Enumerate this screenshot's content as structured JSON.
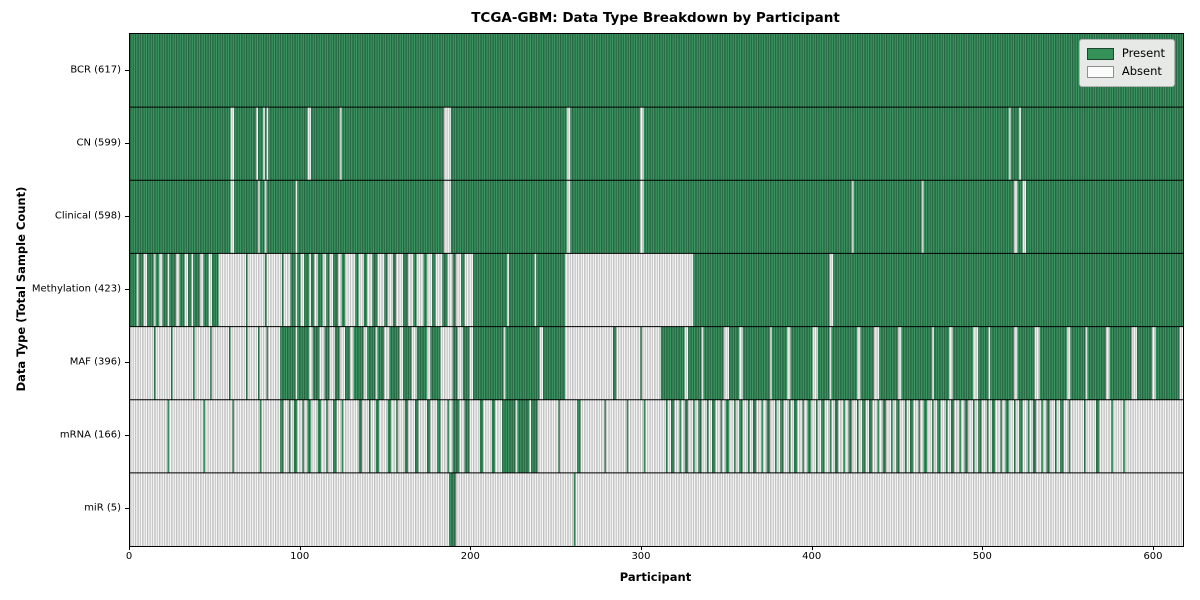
{
  "chart_data": {
    "type": "heatmap",
    "title": "TCGA-GBM: Data Type Breakdown by Participant",
    "xlabel": "Participant",
    "ylabel": "Data Type (Total Sample Count)",
    "x_ticks": [
      0,
      100,
      200,
      300,
      400,
      500,
      600
    ],
    "x_max": 617,
    "grid": false,
    "legend_position": "upper right",
    "legend": [
      {
        "label": "Present",
        "color": "#349158"
      },
      {
        "label": "Absent",
        "color": "#fbfbfb"
      }
    ],
    "colors": {
      "present": "#349158",
      "present_edge": "#1b4730",
      "present_accent": "#4da67a",
      "absent": "#fbfbfb",
      "absent_edge": "#9a9a9a"
    },
    "cell_values": {
      "present": 1,
      "absent": 0
    },
    "rows": [
      {
        "label": "BCR (617)",
        "present_count": 617,
        "runs": [
          [
            1,
            617
          ]
        ]
      },
      {
        "label": "CN (599)",
        "present_count": 599,
        "runs": [
          [
            1,
            59
          ],
          [
            0,
            2
          ],
          [
            1,
            13
          ],
          [
            0,
            1
          ],
          [
            1,
            3
          ],
          [
            0,
            1
          ],
          [
            1,
            1
          ],
          [
            0,
            1
          ],
          [
            1,
            23
          ],
          [
            0,
            2
          ],
          [
            1,
            17
          ],
          [
            0,
            1
          ],
          [
            1,
            60
          ],
          [
            0,
            4
          ],
          [
            1,
            68
          ],
          [
            0,
            2
          ],
          [
            1,
            41
          ],
          [
            0,
            2
          ],
          [
            1,
            214
          ],
          [
            0,
            1
          ],
          [
            1,
            5
          ],
          [
            0,
            1
          ],
          [
            1,
            95
          ]
        ]
      },
      {
        "label": "Clinical (598)",
        "present_count": 598,
        "runs": [
          [
            1,
            59
          ],
          [
            0,
            2
          ],
          [
            1,
            14
          ],
          [
            0,
            1
          ],
          [
            1,
            3
          ],
          [
            0,
            1
          ],
          [
            1,
            17
          ],
          [
            0,
            1
          ],
          [
            1,
            86
          ],
          [
            0,
            4
          ],
          [
            1,
            68
          ],
          [
            0,
            2
          ],
          [
            1,
            41
          ],
          [
            0,
            2
          ],
          [
            1,
            122
          ],
          [
            0,
            1
          ],
          [
            1,
            40
          ],
          [
            0,
            1
          ],
          [
            1,
            53
          ],
          [
            0,
            2
          ],
          [
            1,
            3
          ],
          [
            0,
            2
          ],
          [
            1,
            92
          ]
        ]
      },
      {
        "label": "Methylation (423)",
        "present_count": 423,
        "runs": [
          [
            1,
            4
          ],
          [
            0,
            1
          ],
          [
            1,
            3
          ],
          [
            0,
            2
          ],
          [
            1,
            4
          ],
          [
            0,
            1
          ],
          [
            1,
            2
          ],
          [
            0,
            2
          ],
          [
            1,
            3
          ],
          [
            0,
            1
          ],
          [
            1,
            4
          ],
          [
            0,
            2
          ],
          [
            1,
            3
          ],
          [
            0,
            2
          ],
          [
            1,
            2
          ],
          [
            0,
            1
          ],
          [
            1,
            4
          ],
          [
            0,
            2
          ],
          [
            1,
            3
          ],
          [
            0,
            2
          ],
          [
            1,
            4
          ],
          [
            0,
            4
          ],
          [
            0,
            12
          ],
          [
            1,
            1
          ],
          [
            0,
            10
          ],
          [
            1,
            1
          ],
          [
            0,
            9
          ],
          [
            1,
            1
          ],
          [
            0,
            4
          ],
          [
            1,
            3
          ],
          [
            0,
            1
          ],
          [
            1,
            2
          ],
          [
            0,
            2
          ],
          [
            1,
            3
          ],
          [
            0,
            1
          ],
          [
            1,
            2
          ],
          [
            0,
            2
          ],
          [
            1,
            3
          ],
          [
            0,
            2
          ],
          [
            1,
            2
          ],
          [
            0,
            2
          ],
          [
            1,
            3
          ],
          [
            0,
            2
          ],
          [
            1,
            2
          ],
          [
            0,
            4
          ],
          [
            0,
            2
          ],
          [
            1,
            2
          ],
          [
            0,
            3
          ],
          [
            1,
            2
          ],
          [
            0,
            3
          ],
          [
            1,
            3
          ],
          [
            0,
            4
          ],
          [
            1,
            2
          ],
          [
            0,
            3
          ],
          [
            1,
            2
          ],
          [
            0,
            4
          ],
          [
            1,
            3
          ],
          [
            0,
            3
          ],
          [
            1,
            2
          ],
          [
            0,
            4
          ],
          [
            1,
            2
          ],
          [
            0,
            3
          ],
          [
            1,
            2
          ],
          [
            0,
            4
          ],
          [
            1,
            3
          ],
          [
            0,
            3
          ],
          [
            1,
            2
          ],
          [
            0,
            3
          ],
          [
            1,
            2
          ],
          [
            0,
            5
          ],
          [
            1,
            20
          ],
          [
            0,
            1
          ],
          [
            1,
            15
          ],
          [
            0,
            1
          ],
          [
            1,
            17
          ],
          [
            0,
            75
          ],
          [
            1,
            80
          ],
          [
            0,
            2
          ],
          [
            1,
            205
          ]
        ]
      },
      {
        "label": "MAF (396)",
        "present_count": 396,
        "runs": [
          [
            0,
            14
          ],
          [
            1,
            1
          ],
          [
            0,
            9
          ],
          [
            1,
            1
          ],
          [
            0,
            12
          ],
          [
            1,
            1
          ],
          [
            0,
            9
          ],
          [
            1,
            1
          ],
          [
            0,
            10
          ],
          [
            1,
            1
          ],
          [
            0,
            9
          ],
          [
            1,
            1
          ],
          [
            0,
            6
          ],
          [
            1,
            1
          ],
          [
            0,
            4
          ],
          [
            1,
            1
          ],
          [
            0,
            7
          ],
          [
            1,
            9
          ],
          [
            0,
            1
          ],
          [
            1,
            7
          ],
          [
            0,
            2
          ],
          [
            1,
            4
          ],
          [
            0,
            3
          ],
          [
            1,
            3
          ],
          [
            0,
            3
          ],
          [
            1,
            3
          ],
          [
            0,
            3
          ],
          [
            1,
            3
          ],
          [
            0,
            2
          ],
          [
            1,
            6
          ],
          [
            0,
            2
          ],
          [
            1,
            5
          ],
          [
            0,
            1
          ],
          [
            1,
            4
          ],
          [
            0,
            3
          ],
          [
            1,
            6
          ],
          [
            0,
            2
          ],
          [
            1,
            5
          ],
          [
            0,
            3
          ],
          [
            1,
            6
          ],
          [
            0,
            2
          ],
          [
            1,
            6
          ],
          [
            0,
            4
          ],
          [
            0,
            3
          ],
          [
            1,
            3
          ],
          [
            0,
            3
          ],
          [
            1,
            4
          ],
          [
            0,
            2
          ],
          [
            1,
            18
          ],
          [
            0,
            1
          ],
          [
            1,
            20
          ],
          [
            0,
            2
          ],
          [
            1,
            13
          ],
          [
            0,
            28
          ],
          [
            1,
            2
          ],
          [
            0,
            14
          ],
          [
            1,
            1
          ],
          [
            0,
            11
          ],
          [
            1,
            14
          ],
          [
            0,
            2
          ],
          [
            1,
            8
          ],
          [
            0,
            1
          ],
          [
            1,
            12
          ],
          [
            0,
            3
          ],
          [
            1,
            6
          ],
          [
            0,
            2
          ],
          [
            1,
            16
          ],
          [
            0,
            1
          ],
          [
            1,
            9
          ],
          [
            0,
            2
          ],
          [
            1,
            13
          ],
          [
            0,
            3
          ],
          [
            1,
            7
          ],
          [
            0,
            1
          ],
          [
            1,
            15
          ],
          [
            0,
            2
          ],
          [
            1,
            8
          ],
          [
            0,
            3
          ],
          [
            1,
            11
          ],
          [
            0,
            2
          ],
          [
            1,
            18
          ],
          [
            0,
            1
          ],
          [
            1,
            9
          ],
          [
            0,
            2
          ],
          [
            1,
            12
          ],
          [
            0,
            3
          ],
          [
            1,
            6
          ],
          [
            0,
            1
          ],
          [
            1,
            14
          ],
          [
            0,
            2
          ],
          [
            1,
            10
          ],
          [
            0,
            3
          ],
          [
            1,
            16
          ],
          [
            0,
            2
          ],
          [
            1,
            9
          ],
          [
            0,
            1
          ],
          [
            1,
            11
          ],
          [
            0,
            2
          ],
          [
            1,
            13
          ],
          [
            0,
            3
          ],
          [
            1,
            9
          ],
          [
            0,
            2
          ],
          [
            1,
            14
          ],
          [
            0,
            2
          ]
        ]
      },
      {
        "label": "mRNA (166)",
        "present_count": 166,
        "runs": [
          [
            0,
            22
          ],
          [
            1,
            1
          ],
          [
            0,
            20
          ],
          [
            1,
            1
          ],
          [
            0,
            16
          ],
          [
            1,
            1
          ],
          [
            0,
            15
          ],
          [
            1,
            1
          ],
          [
            0,
            11
          ],
          [
            1,
            2
          ],
          [
            0,
            3
          ],
          [
            1,
            1
          ],
          [
            0,
            2
          ],
          [
            1,
            2
          ],
          [
            0,
            3
          ],
          [
            1,
            1
          ],
          [
            0,
            2
          ],
          [
            1,
            2
          ],
          [
            0,
            4
          ],
          [
            1,
            2
          ],
          [
            0,
            3
          ],
          [
            1,
            1
          ],
          [
            0,
            3
          ],
          [
            1,
            2
          ],
          [
            0,
            3
          ],
          [
            1,
            1
          ],
          [
            0,
            6
          ],
          [
            0,
            3
          ],
          [
            1,
            2
          ],
          [
            0,
            4
          ],
          [
            1,
            1
          ],
          [
            0,
            3
          ],
          [
            1,
            2
          ],
          [
            0,
            5
          ],
          [
            1,
            2
          ],
          [
            0,
            3
          ],
          [
            1,
            1
          ],
          [
            0,
            4
          ],
          [
            1,
            2
          ],
          [
            0,
            4
          ],
          [
            1,
            2
          ],
          [
            0,
            5
          ],
          [
            1,
            2
          ],
          [
            0,
            4
          ],
          [
            1,
            2
          ],
          [
            0,
            4
          ],
          [
            1,
            1
          ],
          [
            0,
            2
          ],
          [
            1,
            4
          ],
          [
            0,
            3
          ],
          [
            1,
            3
          ],
          [
            0,
            2
          ],
          [
            0,
            4
          ],
          [
            1,
            2
          ],
          [
            0,
            5
          ],
          [
            1,
            2
          ],
          [
            0,
            4
          ],
          [
            1,
            8
          ],
          [
            0,
            1
          ],
          [
            1,
            7
          ],
          [
            0,
            1
          ],
          [
            1,
            4
          ],
          [
            0,
            12
          ],
          [
            1,
            1
          ],
          [
            0,
            10
          ],
          [
            1,
            2
          ],
          [
            0,
            14
          ],
          [
            1,
            1
          ],
          [
            0,
            12
          ],
          [
            1,
            1
          ],
          [
            0,
            9
          ],
          [
            1,
            1
          ],
          [
            0,
            9
          ],
          {
            "repeat": 15,
            "runs": [
              [
                0,
                3
              ],
              [
                1,
                1
              ],
              [
                0,
                2
              ],
              [
                1,
                2
              ]
            ]
          },
          {
            "repeat": 15,
            "runs": [
              [
                0,
                2
              ],
              [
                1,
                2
              ],
              [
                0,
                3
              ],
              [
                1,
                1
              ]
            ]
          },
          [
            0,
            8
          ],
          [
            1,
            1
          ],
          [
            0,
            6
          ],
          [
            1,
            2
          ],
          [
            0,
            7
          ],
          [
            1,
            1
          ],
          [
            0,
            6
          ],
          [
            1,
            1
          ],
          [
            0,
            8
          ],
          [
            0,
            26
          ]
        ]
      },
      {
        "label": "miR (5)",
        "present_count": 5,
        "runs": [
          [
            0,
            187
          ],
          [
            1,
            4
          ],
          [
            0,
            69
          ],
          [
            1,
            1
          ],
          [
            0,
            356
          ]
        ]
      }
    ]
  }
}
